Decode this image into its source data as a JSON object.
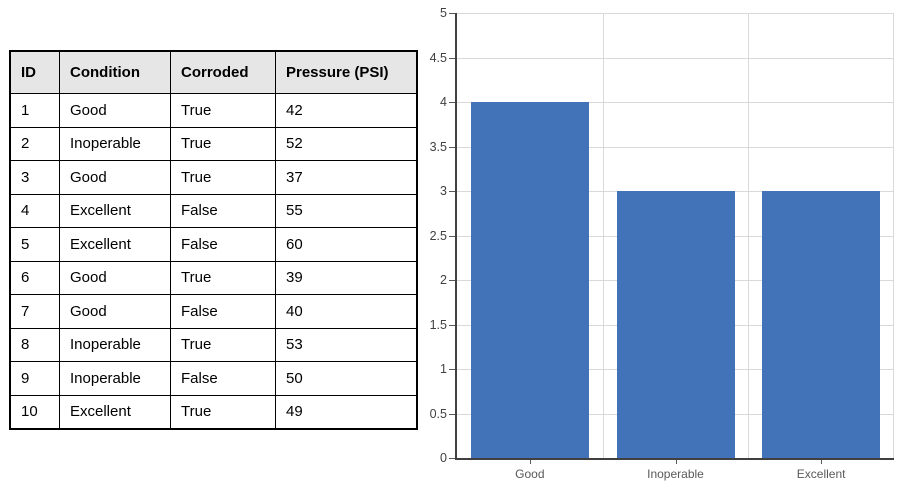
{
  "table": {
    "columns": [
      "ID",
      "Condition",
      "Corroded",
      "Pressure (PSI)"
    ],
    "rows": [
      [
        "1",
        "Good",
        "True",
        "42"
      ],
      [
        "2",
        "Inoperable",
        "True",
        "52"
      ],
      [
        "3",
        "Good",
        "True",
        "37"
      ],
      [
        "4",
        "Excellent",
        "False",
        "55"
      ],
      [
        "5",
        "Excellent",
        "False",
        "60"
      ],
      [
        "6",
        "Good",
        "True",
        "39"
      ],
      [
        "7",
        "Good",
        "False",
        "40"
      ],
      [
        "8",
        "Inoperable",
        "True",
        "53"
      ],
      [
        "9",
        "Inoperable",
        "False",
        "50"
      ],
      [
        "10",
        "Excellent",
        "True",
        "49"
      ]
    ],
    "header_bg": "#E7E6E6",
    "border_color": "#000000"
  },
  "chart_data": {
    "type": "bar",
    "categories": [
      "Good",
      "Inoperable",
      "Excellent"
    ],
    "values": [
      4,
      3,
      3
    ],
    "title": "",
    "xlabel": "",
    "ylabel": "",
    "ylim": [
      0,
      5
    ],
    "ytick_step": 0.5,
    "ytick_labels": [
      "0",
      "0.5",
      "1",
      "1.5",
      "2",
      "2.5",
      "3",
      "3.5",
      "4",
      "4.5",
      "5"
    ],
    "grid": true,
    "legend": "none",
    "bar_color": "#4273B8",
    "gridline_color": "#D9D9D9",
    "axis_color": "#404040",
    "tick_color": "#595959",
    "ytick_label_color": "#404040",
    "category_label_color": "#595959"
  }
}
